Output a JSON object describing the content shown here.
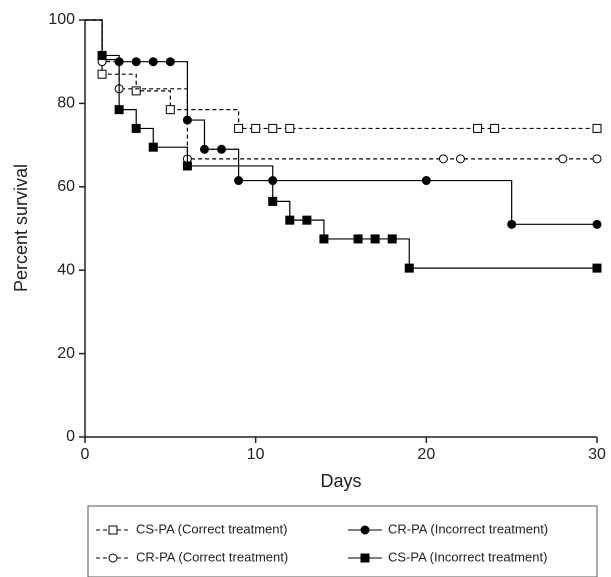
{
  "chart_data": {
    "type": "step",
    "xlabel": "Days",
    "ylabel": "Percent survival",
    "xlim": [
      0,
      30
    ],
    "xticks": [
      0,
      10,
      20,
      30
    ],
    "ylim": [
      0,
      100
    ],
    "yticks": [
      0,
      20,
      40,
      60,
      80,
      100
    ],
    "series": [
      {
        "name": "CS-PA (Correct treatment)",
        "color": "#000000",
        "dashed": true,
        "marker": "square",
        "filled": false,
        "x": [
          0,
          1,
          3,
          5,
          9,
          10,
          11,
          12,
          23,
          24,
          30
        ],
        "values": [
          100,
          87,
          83,
          78.5,
          74,
          74,
          74,
          74,
          74,
          74,
          74
        ]
      },
      {
        "name": "CR-PA (Incorrect treatment)",
        "color": "#000000",
        "dashed": false,
        "marker": "circle",
        "filled": true,
        "x": [
          0,
          1,
          2,
          3,
          4,
          5,
          6,
          7,
          8,
          9,
          11,
          20,
          25,
          30
        ],
        "values": [
          100,
          90.5,
          90,
          90,
          90,
          90,
          76,
          69,
          69,
          61.5,
          61.5,
          61.5,
          51,
          51
        ]
      },
      {
        "name": "CR-PA (Correct treatment)",
        "color": "#000000",
        "dashed": true,
        "marker": "circle",
        "filled": false,
        "x": [
          0,
          1,
          2,
          6,
          21,
          22,
          28,
          30
        ],
        "values": [
          100,
          90,
          83.5,
          66.7,
          66.7,
          66.7,
          66.7,
          66.7
        ]
      },
      {
        "name": "CS-PA (Incorrect treatment)",
        "color": "#000000",
        "dashed": false,
        "marker": "square",
        "filled": true,
        "x": [
          0,
          1,
          2,
          3,
          4,
          6,
          11,
          12,
          13,
          14,
          16,
          17,
          18,
          19,
          30
        ],
        "values": [
          100,
          91.5,
          78.5,
          74,
          69.5,
          65,
          56.5,
          52,
          52,
          47.5,
          47.5,
          47.5,
          47.5,
          40.5,
          40.5
        ]
      }
    ]
  }
}
